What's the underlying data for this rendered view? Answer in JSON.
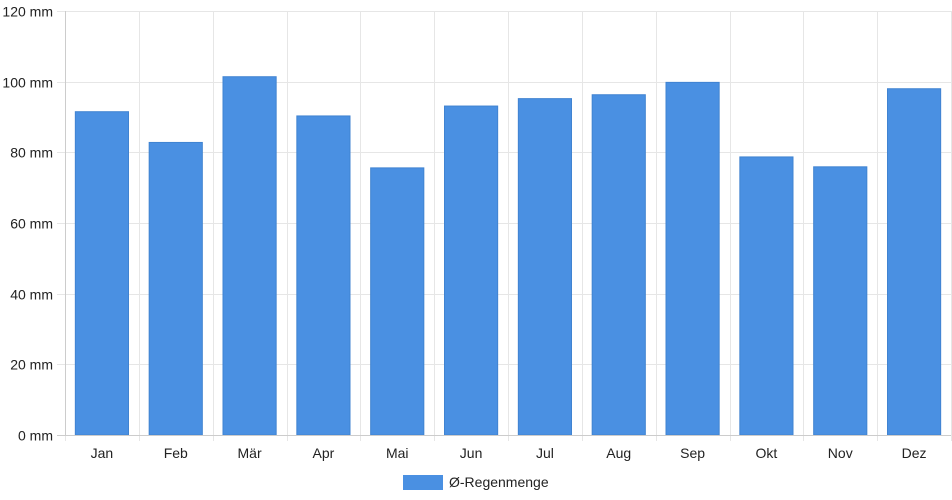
{
  "chart_data": {
    "type": "bar",
    "categories": [
      "Jan",
      "Feb",
      "Mär",
      "Apr",
      "Mai",
      "Jun",
      "Jul",
      "Aug",
      "Sep",
      "Okt",
      "Nov",
      "Dez"
    ],
    "series": [
      {
        "name": "Ø-Regenmenge",
        "values": [
          91.5,
          82.8,
          101.4,
          90.3,
          75.6,
          93.1,
          95.2,
          96.3,
          99.8,
          78.7,
          75.9,
          98.0
        ],
        "color": "#4a90e2"
      }
    ],
    "y_ticks": [
      "0 mm",
      "20 mm",
      "40 mm",
      "60 mm",
      "80 mm",
      "100 mm",
      "120 mm"
    ],
    "ylim": [
      0,
      120
    ],
    "y_step": 20,
    "grid": true,
    "legend_position": "bottom-center"
  }
}
